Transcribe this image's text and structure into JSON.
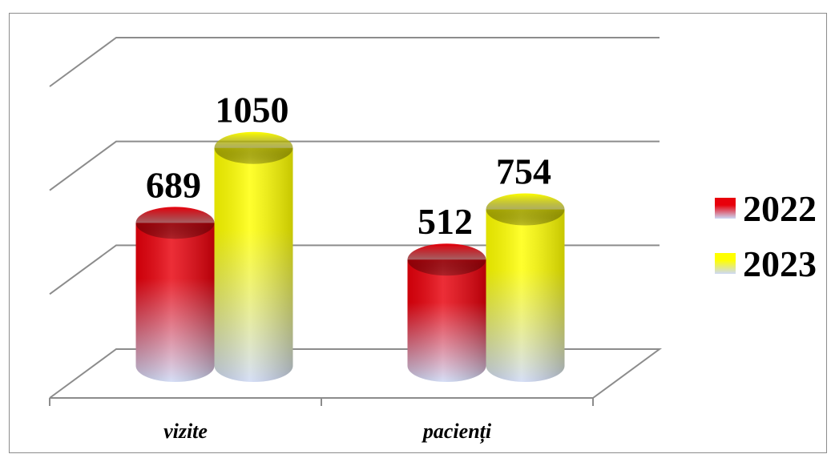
{
  "chart_data": {
    "type": "bar",
    "style": "3d-cylinder",
    "categories": [
      "vizite",
      "pacienți"
    ],
    "series": [
      {
        "name": "2022",
        "values": [
          689,
          512
        ],
        "color": "#e8000b",
        "color_bottom": "#cdd8f5"
      },
      {
        "name": "2023",
        "values": [
          1050,
          754
        ],
        "color": "#ffff00",
        "color_bottom": "#cdd8f5"
      }
    ],
    "ylim": [
      0,
      1500
    ],
    "grid": true,
    "legend": "right",
    "title": "",
    "xlabel": "",
    "ylabel": ""
  }
}
